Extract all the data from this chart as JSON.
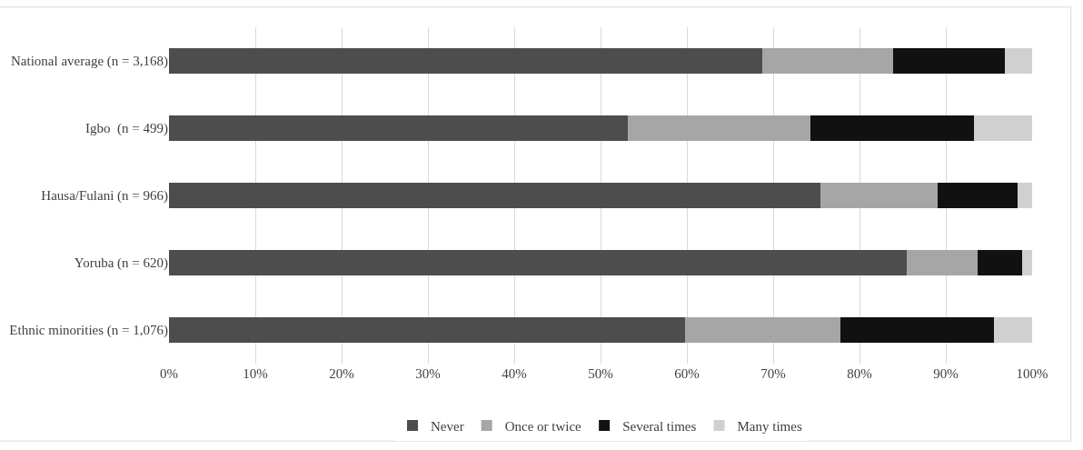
{
  "chart_data": {
    "type": "bar",
    "orientation": "horizontal",
    "stacked": true,
    "categories": [
      "National average (n = 3,168)",
      "Igbo  (n = 499)",
      "Hausa/Fulani (n = 966)",
      "Yoruba (n = 620)",
      "Ethnic minorities (n = 1,076)"
    ],
    "series": [
      {
        "name": "Never",
        "color": "#4d4d4d",
        "values": [
          68.7,
          53.2,
          75.5,
          85.5,
          59.8
        ]
      },
      {
        "name": "Once or twice",
        "color": "#a6a6a6",
        "values": [
          15.2,
          21.1,
          13.6,
          8.2,
          18.0
        ]
      },
      {
        "name": "Several times",
        "color": "#111111",
        "values": [
          12.9,
          19.0,
          9.2,
          5.1,
          17.8
        ]
      },
      {
        "name": "Many times",
        "color": "#d0d0d0",
        "values": [
          3.2,
          6.7,
          1.7,
          1.2,
          4.4
        ]
      }
    ],
    "xlim": [
      0,
      100
    ],
    "xticks": [
      {
        "value": 0,
        "label": "0%"
      },
      {
        "value": 10,
        "label": "10%"
      },
      {
        "value": 20,
        "label": "20%"
      },
      {
        "value": 30,
        "label": "30%"
      },
      {
        "value": 40,
        "label": "40%"
      },
      {
        "value": 50,
        "label": "50%"
      },
      {
        "value": 60,
        "label": "60%"
      },
      {
        "value": 70,
        "label": "70%"
      },
      {
        "value": 80,
        "label": "80%"
      },
      {
        "value": 90,
        "label": "90%"
      },
      {
        "value": 100,
        "label": "100%"
      }
    ],
    "grid": "x",
    "legend": "bottom"
  }
}
